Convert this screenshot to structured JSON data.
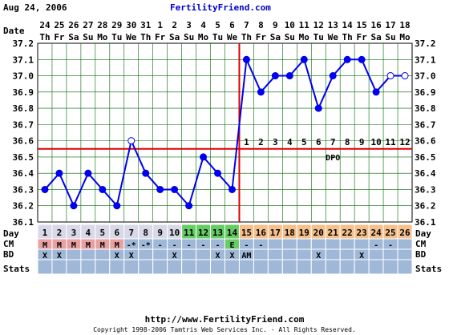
{
  "header": {
    "date": "Aug 24, 2006",
    "brand": "FertilityFriend.com"
  },
  "footer": {
    "url": "http://www.FertilityFriend.com",
    "copyright": "Copyright 1998-2006 Tamtris Web Services Inc. - All Rights Reserved."
  },
  "chart_data": {
    "type": "line",
    "row_labels": {
      "date": "Date",
      "day": "Day",
      "cm": "CM",
      "bd": "BD",
      "stats": "Stats"
    },
    "dates": [
      "24",
      "25",
      "26",
      "27",
      "28",
      "29",
      "30",
      "31",
      "1",
      "2",
      "3",
      "4",
      "5",
      "6",
      "7",
      "8",
      "9",
      "10",
      "11",
      "12",
      "13",
      "14",
      "15",
      "16",
      "17",
      "18"
    ],
    "weekdays": [
      "Th",
      "Fr",
      "Sa",
      "Su",
      "Mo",
      "Tu",
      "We",
      "Th",
      "Fr",
      "Sa",
      "Su",
      "Mo",
      "Tu",
      "We",
      "Th",
      "Fr",
      "Sa",
      "Su",
      "Mo",
      "Tu",
      "We",
      "Th",
      "Fr",
      "Sa",
      "Su",
      "Mo"
    ],
    "days": [
      "1",
      "2",
      "3",
      "4",
      "5",
      "6",
      "7",
      "8",
      "9",
      "10",
      "11",
      "12",
      "13",
      "14",
      "15",
      "16",
      "17",
      "18",
      "19",
      "20",
      "21",
      "22",
      "23",
      "24",
      "25",
      "26"
    ],
    "temps": [
      36.3,
      36.4,
      36.2,
      36.4,
      36.3,
      36.2,
      36.6,
      36.4,
      36.3,
      36.3,
      36.2,
      36.5,
      36.4,
      36.3,
      37.1,
      36.9,
      37.0,
      37.0,
      37.1,
      36.8,
      37.0,
      37.1,
      37.1,
      36.9,
      37.0,
      37.0
    ],
    "open_points": [
      6,
      24,
      25
    ],
    "ylim": [
      36.1,
      37.2
    ],
    "yticks": [
      "36.1",
      "36.2",
      "36.3",
      "36.4",
      "36.5",
      "36.6",
      "36.7",
      "36.8",
      "36.9",
      "37.0",
      "37.1",
      "37.2"
    ],
    "coverline": 36.55,
    "ovulation_day_index": 13,
    "dpo_label": "DPO",
    "dpo_numbers": [
      "1",
      "2",
      "3",
      "4",
      "5",
      "6",
      "7",
      "8",
      "9",
      "10",
      "11",
      "12"
    ],
    "cm": [
      "M",
      "M",
      "M",
      "M",
      "M",
      "M",
      "-*",
      "-*",
      "-",
      "-",
      "-",
      "-",
      "-",
      "E",
      "-",
      "-",
      "",
      "",
      "",
      "",
      "",
      "",
      "",
      "-",
      "-",
      ""
    ],
    "bd": [
      "X",
      "X",
      "",
      "",
      "",
      "X",
      "X",
      "",
      "",
      "X",
      "",
      "",
      "X",
      "X",
      "AM",
      "",
      "",
      "",
      "",
      "X",
      "",
      "",
      "X",
      "",
      "",
      ""
    ],
    "colors": {
      "temp_line": "#0000ee",
      "coverline": "#dd0000",
      "grid": "#006600",
      "plot_bg": "#ffffff",
      "row_bg": "#a0b8d8",
      "menses": "#e8a0a0",
      "fertile": "#66cc66",
      "luteal": "#f4c08c",
      "follicular": "#d8d8e8"
    }
  }
}
